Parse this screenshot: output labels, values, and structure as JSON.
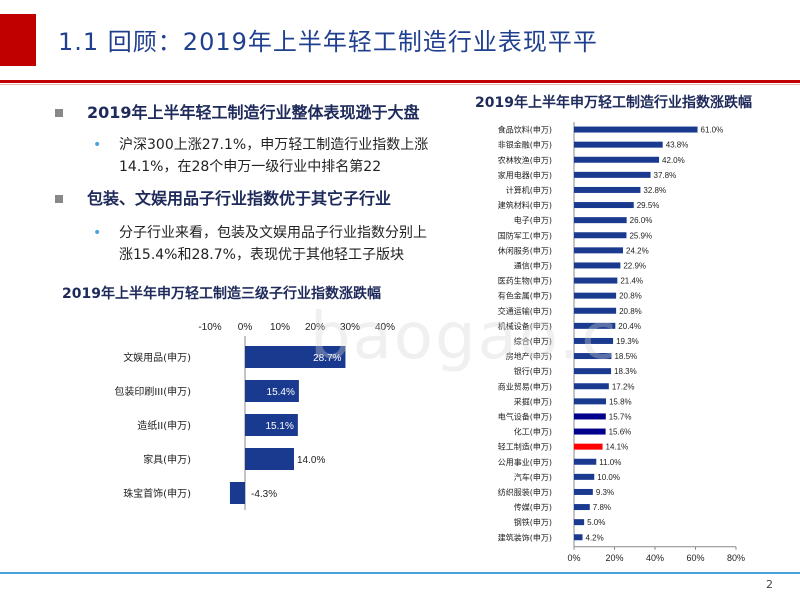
{
  "slide": {
    "title": "1.1 回顾：2019年上半年轻工制造行业表现平平",
    "page_number": "2",
    "watermark": "baogao.c"
  },
  "bullets": [
    {
      "level": 1,
      "text": "2019年上半年轻工制造行业整体表现逊于大盘"
    },
    {
      "level": 2,
      "lines": [
        "沪深300上涨27.1%，申万轻工制造行业指数上涨",
        "14.1%，在28个申万一级行业中排名第22"
      ]
    },
    {
      "level": 1,
      "text": "包装、文娱用品子行业指数优于其它子行业"
    },
    {
      "level": 2,
      "lines": [
        "分子行业来看，包装及文娱用品子行业指数分别上",
        "涨15.4%和28.7%，表现优于其他轻工子版块"
      ]
    }
  ],
  "chart_data": [
    {
      "type": "bar",
      "orientation": "horizontal",
      "title": "2019年上半年申万轻工制造三级子行业指数涨跌幅",
      "categories": [
        "文娱用品(申万)",
        "包装印刷III(申万)",
        "造纸II(申万)",
        "家具(申万)",
        "珠宝首饰(申万)"
      ],
      "values": [
        28.7,
        15.4,
        15.1,
        14.0,
        -4.3
      ],
      "value_labels": [
        "28.7%",
        "15.4%",
        "15.1%",
        "14.0%",
        "-4.3%"
      ],
      "xlim": [
        -10,
        40
      ],
      "xticks": [
        "-10%",
        "0%",
        "10%",
        "20%",
        "30%",
        "40%"
      ],
      "axis_position": "top",
      "bar_color": "#1a3a8f"
    },
    {
      "type": "bar",
      "orientation": "horizontal",
      "title": "2019年上半年申万轻工制造行业指数涨跌幅",
      "categories": [
        "食品饮料(申万)",
        "非银金融(申万)",
        "农林牧渔(申万)",
        "家用电器(申万)",
        "计算机(申万)",
        "建筑材料(申万)",
        "电子(申万)",
        "国防军工(申万)",
        "休闲服务(申万)",
        "通信(申万)",
        "医药生物(申万)",
        "有色金属(申万)",
        "交通运输(申万)",
        "机械设备(申万)",
        "综合(申万)",
        "房地产(申万)",
        "银行(申万)",
        "商业贸易(申万)",
        "采掘(申万)",
        "电气设备(申万)",
        "化工(申万)",
        "轻工制造(申万)",
        "公用事业(申万)",
        "汽车(申万)",
        "纺织服装(申万)",
        "传媒(申万)",
        "钢铁(申万)",
        "建筑装饰(申万)"
      ],
      "values": [
        61.0,
        43.8,
        42.0,
        37.8,
        32.8,
        29.5,
        26.0,
        25.9,
        24.2,
        22.9,
        21.4,
        20.8,
        20.8,
        20.4,
        19.3,
        18.5,
        18.3,
        17.2,
        15.8,
        15.7,
        15.6,
        14.1,
        11.0,
        10.0,
        9.3,
        7.8,
        5.0,
        4.2
      ],
      "value_labels": [
        "61.0%",
        "43.8%",
        "42.0%",
        "37.8%",
        "32.8%",
        "29.5%",
        "26.0%",
        "25.9%",
        "24.2%",
        "22.9%",
        "21.4%",
        "20.8%",
        "20.8%",
        "20.4%",
        "19.3%",
        "18.5%",
        "18.3%",
        "17.2%",
        "15.8%",
        "15.7%",
        "15.6%",
        "14.1%",
        "11.0%",
        "10.0%",
        "9.3%",
        "7.8%",
        "5.0%",
        "4.2%"
      ],
      "xlim": [
        0,
        80
      ],
      "xticks": [
        "0%",
        "20%",
        "40%",
        "60%",
        "80%"
      ],
      "axis_position": "bottom",
      "bar_colors": {
        "default": "#1a3a8f",
        "highlight": "#ff0000",
        "emphasis": "#00008b"
      },
      "highlight_index": 21,
      "emphasis_indices": [
        19,
        20
      ]
    }
  ]
}
